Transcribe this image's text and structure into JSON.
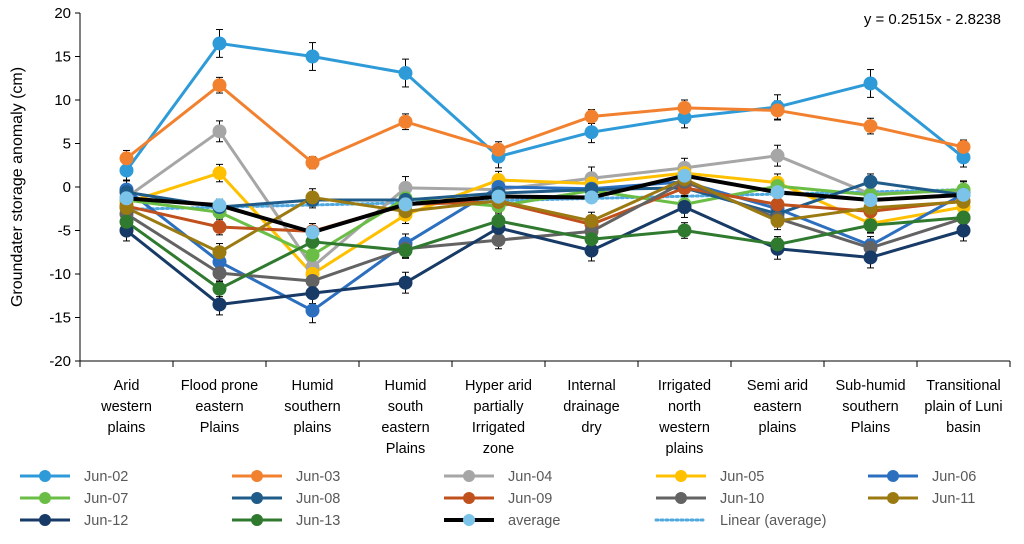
{
  "chart_data": {
    "type": "line",
    "title": "",
    "xlabel": "",
    "ylabel": "Groundater storage anomaly (cm)",
    "ylim": [
      -20,
      20
    ],
    "ytick_step": 5,
    "yticks": [
      "20",
      "15",
      "10",
      "5",
      "0",
      "-5",
      "-10",
      "-15",
      "-20"
    ],
    "categories": [
      [
        "Arid",
        "western",
        "plains"
      ],
      [
        "Flood prone",
        "eastern",
        "Plains"
      ],
      [
        "Humid",
        "southern",
        "plains"
      ],
      [
        "Humid",
        "south",
        "eastern",
        "Plains"
      ],
      [
        "Hyper arid",
        "partially",
        "Irrigated",
        "zone"
      ],
      [
        "Internal",
        "drainage",
        "dry"
      ],
      [
        "Irrigated",
        "north",
        "western",
        "plains"
      ],
      [
        "Semi arid",
        "eastern",
        "plains"
      ],
      [
        "Sub-humid",
        "southern",
        "Plains"
      ],
      [
        "Transitional",
        "plain of Luni",
        "basin"
      ]
    ],
    "annotation": "y = 0.2515x - 2.8238",
    "series": [
      {
        "name": "Jun-02",
        "color": "#2E9BD8",
        "values": [
          1.9,
          16.5,
          15.0,
          13.1,
          3.5,
          6.3,
          8.0,
          9.2,
          11.9,
          3.4
        ],
        "errors": [
          1.1,
          1.6,
          1.6,
          1.6,
          1.3,
          1.2,
          1.2,
          1.4,
          1.6,
          1.1
        ]
      },
      {
        "name": "Jun-03",
        "color": "#F2812F",
        "values": [
          3.3,
          11.7,
          2.8,
          7.5,
          4.3,
          8.1,
          9.1,
          8.8,
          7.0,
          4.6
        ],
        "errors": [
          0.9,
          0.9,
          0.7,
          0.9,
          0.9,
          0.8,
          0.9,
          1.1,
          0.9,
          0.8
        ]
      },
      {
        "name": "Jun-04",
        "color": "#A6A6A6",
        "values": [
          -1.2,
          6.4,
          -9.2,
          -0.1,
          -0.3,
          1.0,
          2.2,
          3.6,
          -0.8,
          -0.4
        ],
        "errors": [
          1.0,
          1.2,
          1.2,
          1.3,
          1.0,
          1.3,
          1.1,
          1.2,
          1.2,
          1.0
        ]
      },
      {
        "name": "Jun-05",
        "color": "#FFC000",
        "values": [
          -1.8,
          1.6,
          -10.0,
          -3.2,
          0.8,
          0.4,
          1.6,
          0.5,
          -4.2,
          -2.3
        ],
        "errors": [
          1.0,
          1.0,
          1.0,
          1.0,
          1.0,
          1.0,
          1.0,
          1.0,
          1.0,
          1.0
        ]
      },
      {
        "name": "Jun-06",
        "color": "#2C6FBF",
        "values": [
          -0.3,
          -8.6,
          -14.2,
          -6.5,
          0.0,
          -0.2,
          0.6,
          -2.5,
          -6.7,
          -0.8
        ],
        "errors": [
          1.0,
          1.1,
          1.4,
          1.1,
          1.0,
          1.0,
          1.0,
          1.0,
          1.0,
          1.0
        ]
      },
      {
        "name": "Jun-07",
        "color": "#6BBE45",
        "values": [
          -1.5,
          -2.9,
          -7.8,
          -1.3,
          -2.2,
          -0.4,
          -2.0,
          0.1,
          -0.9,
          -0.3
        ],
        "errors": [
          1.0,
          1.0,
          1.1,
          1.0,
          1.0,
          1.0,
          1.0,
          1.0,
          1.0,
          1.0
        ]
      },
      {
        "name": "Jun-08",
        "color": "#1F5C8A",
        "values": [
          -0.6,
          -2.3,
          -1.5,
          -1.5,
          -0.7,
          -0.3,
          -0.1,
          -3.1,
          0.6,
          -0.9
        ],
        "errors": [
          0.9,
          0.9,
          0.9,
          0.9,
          0.9,
          0.9,
          0.9,
          0.9,
          0.9,
          0.9
        ]
      },
      {
        "name": "Jun-09",
        "color": "#C0501C",
        "values": [
          -2.2,
          -4.6,
          -5.1,
          -2.0,
          -1.7,
          -4.3,
          -0.1,
          -2.0,
          -2.8,
          -1.6
        ],
        "errors": [
          0.9,
          0.9,
          0.9,
          0.9,
          0.9,
          0.9,
          0.9,
          0.9,
          0.9,
          0.9
        ]
      },
      {
        "name": "Jun-10",
        "color": "#636363",
        "values": [
          -3.1,
          -9.9,
          -10.8,
          -7.1,
          -6.1,
          -5.1,
          0.6,
          -3.6,
          -7.0,
          -3.6
        ],
        "errors": [
          1.0,
          1.0,
          1.0,
          1.0,
          1.0,
          1.0,
          1.0,
          1.0,
          1.0,
          1.0
        ]
      },
      {
        "name": "Jun-11",
        "color": "#9C7A12",
        "values": [
          -2.4,
          -7.5,
          -1.2,
          -2.8,
          -1.6,
          -3.9,
          0.9,
          -3.9,
          -2.4,
          -1.7
        ],
        "errors": [
          1.0,
          1.0,
          1.0,
          1.0,
          1.0,
          1.0,
          1.0,
          1.0,
          1.0,
          1.0
        ]
      },
      {
        "name": "Jun-12",
        "color": "#173A66",
        "values": [
          -5.0,
          -13.5,
          -12.2,
          -11.0,
          -4.7,
          -7.3,
          -2.3,
          -7.1,
          -8.1,
          -5.0
        ],
        "errors": [
          1.2,
          1.2,
          1.2,
          1.2,
          1.2,
          1.2,
          1.2,
          1.2,
          1.2,
          1.2
        ]
      },
      {
        "name": "Jun-13",
        "color": "#2F7A2F",
        "values": [
          -4.0,
          -11.7,
          -6.3,
          -7.3,
          -3.9,
          -6.0,
          -5.0,
          -6.6,
          -4.4,
          -3.5
        ],
        "errors": [
          0.9,
          0.9,
          0.9,
          0.9,
          0.9,
          0.9,
          0.9,
          0.9,
          0.9,
          0.9
        ]
      },
      {
        "name": "average",
        "color": "#000000",
        "values": [
          -1.3,
          -2.1,
          -5.2,
          -2.0,
          -1.1,
          -1.2,
          1.3,
          -0.6,
          -1.5,
          -0.9
        ],
        "errors": [
          0.6,
          0.6,
          0.6,
          0.6,
          0.6,
          0.6,
          0.6,
          0.6,
          0.6,
          0.6
        ]
      }
    ],
    "trendline": {
      "name": "Linear (average)",
      "color": "#4FA8E0",
      "slope": 0.2515,
      "intercept": -2.8238
    }
  }
}
